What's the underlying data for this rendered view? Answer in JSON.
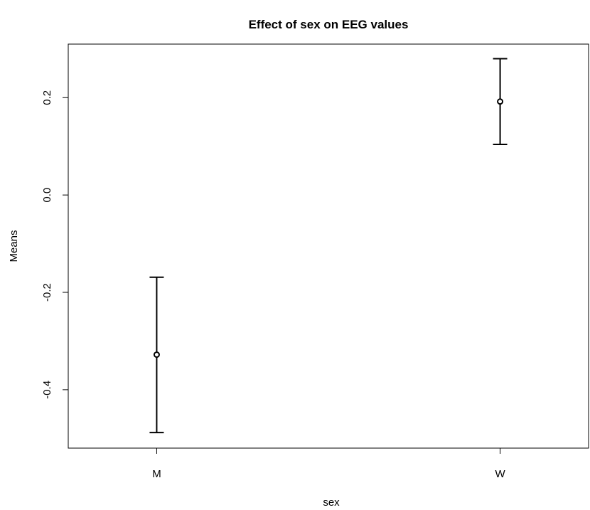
{
  "chart_data": {
    "type": "scatter",
    "title": "Effect of sex on EEG values",
    "xlabel": "sex",
    "ylabel": "Means",
    "categories": [
      "M",
      "W"
    ],
    "series": [
      {
        "values": [
          -0.328,
          0.192
        ],
        "lower": [
          -0.488,
          0.104
        ],
        "upper": [
          -0.169,
          0.28
        ]
      }
    ],
    "ylim": [
      -0.52,
      0.31
    ],
    "yticks": [
      -0.4,
      -0.2,
      0.0,
      0.2
    ],
    "ytick_labels": [
      "-0.4",
      "-0.2",
      "0.0",
      "0.2"
    ],
    "grid": false,
    "legend": "none",
    "colors": {
      "mark": "#000000",
      "axis": "#000000",
      "background": "#ffffff"
    }
  }
}
